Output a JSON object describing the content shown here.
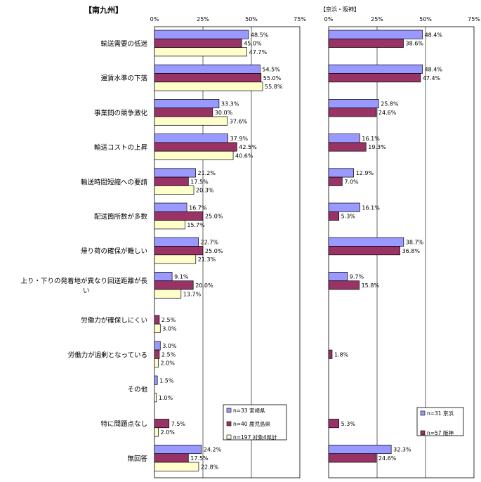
{
  "chart_data": [
    {
      "type": "bar",
      "orientation": "horizontal",
      "title": "【南九州】",
      "categories": [
        "輸送需要の低迷",
        "運賃水準の下落",
        "事業間の競争激化",
        "輸送コストの上昇",
        "輸送時間短縮への要請",
        "配送箇所数が多数",
        "帰り荷の確保が難しい",
        "上り・下りの発着地が異なり回送距離が長い",
        "労働力が確保しにくい",
        "労働力が過剰となっている",
        "その他",
        "特に問題点なし",
        "無回答"
      ],
      "xlim": [
        0,
        75
      ],
      "xticks": [
        "0%",
        "25%",
        "50%",
        "75%"
      ],
      "series": [
        {
          "name": "n=33 宮崎県",
          "color": "#9999ff",
          "values": [
            48.5,
            54.5,
            33.3,
            37.9,
            21.2,
            16.7,
            22.7,
            9.1,
            null,
            3.0,
            1.5,
            null,
            24.2
          ],
          "labels": [
            "48.5%",
            "54.5%",
            "33.3%",
            "37.9%",
            "21.2%",
            "16.7%",
            "22.7%",
            "9.1%",
            "",
            "3.0%",
            "1.5%",
            "",
            "24.2%"
          ]
        },
        {
          "name": "n=40 鹿児島県",
          "color": "#993366",
          "values": [
            45.0,
            55.0,
            30.0,
            42.5,
            17.5,
            25.0,
            25.0,
            20.0,
            2.5,
            2.5,
            null,
            7.5,
            17.5
          ],
          "labels": [
            "45.0%",
            "55.0%",
            "30.0%",
            "42.5%",
            "17.5%",
            "25.0%",
            "25.0%",
            "20.0%",
            "2.5%",
            "2.5%",
            "",
            "7.5%",
            "17.5%"
          ]
        },
        {
          "name": "n=197 対象4県計",
          "color": "#ffffcc",
          "values": [
            47.7,
            55.8,
            37.6,
            40.6,
            20.3,
            15.7,
            21.3,
            13.7,
            3.0,
            2.0,
            1.0,
            2.0,
            22.8
          ],
          "labels": [
            "47.7%",
            "55.8%",
            "37.6%",
            "40.6%",
            "20.3%",
            "15.7%",
            "21.3%",
            "13.7%",
            "3.0%",
            "2.0%",
            "1.0%",
            "2.0%",
            "22.8%"
          ]
        }
      ],
      "legend_position": "bottom-right",
      "grid": true
    },
    {
      "type": "bar",
      "orientation": "horizontal",
      "title": "【京浜・阪神】",
      "categories": [
        "輸送需要の低迷",
        "運賃水準の下落",
        "事業間の競争激化",
        "輸送コストの上昇",
        "輸送時間短縮への要請",
        "配送箇所数が多数",
        "帰り荷の確保が難しい",
        "上り・下りの発着地が異なり回送距離が長い",
        "労働力が確保しにくい",
        "労働力が過剰となっている",
        "その他",
        "特に問題点なし",
        "無回答"
      ],
      "xlim": [
        0,
        75
      ],
      "xticks": [
        "0%",
        "25%",
        "50%",
        "75%"
      ],
      "series": [
        {
          "name": "n=31 京浜",
          "color": "#9999ff",
          "values": [
            48.4,
            48.4,
            25.8,
            16.1,
            12.9,
            16.1,
            38.7,
            9.7,
            null,
            null,
            null,
            null,
            32.3
          ],
          "labels": [
            "48.4%",
            "48.4%",
            "25.8%",
            "16.1%",
            "12.9%",
            "16.1%",
            "38.7%",
            "9.7%",
            "",
            "",
            "",
            "",
            "32.3%"
          ]
        },
        {
          "name": "n=57 阪神",
          "color": "#993366",
          "values": [
            38.6,
            47.4,
            24.6,
            19.3,
            7.0,
            5.3,
            36.8,
            15.8,
            null,
            1.8,
            null,
            5.3,
            24.6
          ],
          "labels": [
            "38.6%",
            "47.4%",
            "24.6%",
            "19.3%",
            "7.0%",
            "5.3%",
            "36.8%",
            "15.8%",
            "",
            "1.8%",
            "",
            "5.3%",
            "24.6%"
          ]
        }
      ],
      "legend_position": "bottom-right",
      "grid": true
    }
  ]
}
